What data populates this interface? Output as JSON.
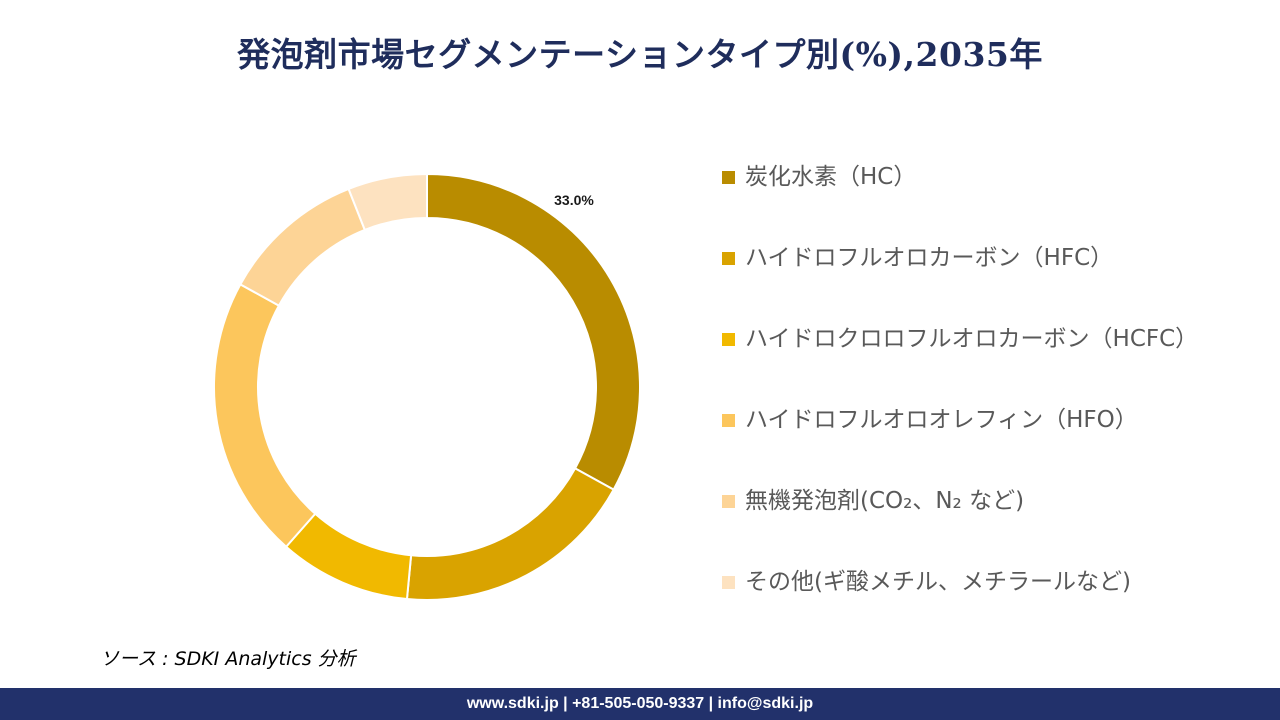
{
  "title": "発泡剤市場セグメンテーションタイプ別(%),2035年",
  "chart_data": {
    "type": "pie",
    "donut": true,
    "categories": [
      "炭化水素（HC）",
      "ハイドロフルオロカーボン（HFC）",
      "ハイドロクロロフルオロカーボン（HCFC）",
      "ハイドロフルオロオレフィン（HFO）",
      "無機発泡剤(CO₂、N₂ など)",
      "その他(ギ酸メチル、メチラールなど)"
    ],
    "values": [
      33.0,
      18.5,
      10.0,
      21.5,
      11.0,
      6.0
    ],
    "colors": [
      "#b98c00",
      "#d9a300",
      "#f1b900",
      "#fcc65c",
      "#fdd496",
      "#fde2c0"
    ],
    "data_labels": [
      "33.0%",
      "",
      "",
      "",
      "",
      ""
    ],
    "legend_position": "right"
  },
  "source": "ソース : SDKI Analytics 分析",
  "footer": "www.sdki.jp | +81-505-050-9337 | info@sdki.jp"
}
